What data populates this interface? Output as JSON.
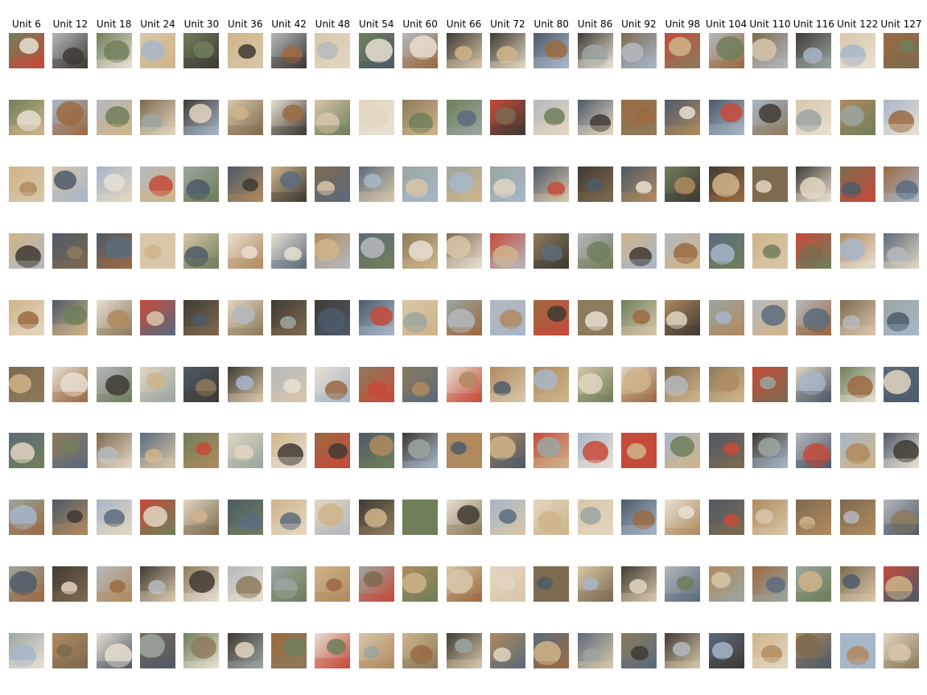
{
  "figure": {
    "columns": [
      "Unit 6",
      "Unit 12",
      "Unit 18",
      "Unit 24",
      "Unit 30",
      "Unit 36",
      "Unit 42",
      "Unit 48",
      "Unit 54",
      "Unit 60",
      "Unit 66",
      "Unit 72",
      "Unit 80",
      "Unit 86",
      "Unit 92",
      "Unit 98",
      "Unit 104",
      "Unit 110",
      "Unit 116",
      "Unit 122",
      "Unit 127"
    ],
    "rows": [
      [
        "dog",
        "dog",
        "dog",
        "cat",
        "dog",
        "ship",
        "dog",
        "dog",
        "dog",
        "dog",
        "cat",
        "bird",
        "cat",
        "dog",
        "bird",
        "cat",
        "deer",
        "automobile",
        "airplane",
        "dog",
        "automobile"
      ],
      [
        "dog",
        "horse",
        "dog",
        "dog",
        "deer",
        "airplane",
        "dog",
        "dog",
        "bird",
        "dog",
        "dog",
        "horse",
        "cat",
        "dog",
        "truck",
        "bird",
        "automobile",
        "horse",
        "cat",
        "dog",
        "truck"
      ],
      [
        "automobile",
        "dog",
        "bird",
        "cat",
        "cat",
        "cat",
        "dog",
        "dog",
        "cat",
        "dog",
        "cat",
        "cat",
        "dog",
        "cat",
        "automobile",
        "dog",
        "horse",
        "cat",
        "automobile",
        "dog",
        "truck"
      ],
      [
        "horse",
        "cat",
        "dog",
        "cat",
        "dog",
        "dog",
        "dog",
        "dog",
        "dog",
        "dog",
        "dog",
        "cat",
        "automobile",
        "dog",
        "truck",
        "dog",
        "deer",
        "cat",
        "airplane",
        "dog",
        "deer"
      ],
      [
        "horse",
        "dog",
        "bird",
        "dog",
        "airplane",
        "bird",
        "dog",
        "dog",
        "ship",
        "dog",
        "cat",
        "automobile",
        "cat",
        "cat",
        "cat",
        "ship",
        "dog",
        "dog",
        "ship",
        "dog",
        "truck"
      ],
      [
        "truck",
        "deer",
        "truck",
        "dog",
        "bird",
        "ship",
        "dog",
        "dog",
        "dog",
        "dog",
        "dog",
        "cat",
        "automobile",
        "dog",
        "truck",
        "cat",
        "dog",
        "automobile",
        "automobile",
        "dog",
        "deer"
      ],
      [
        "bird",
        "dog",
        "dog",
        "cat",
        "dog",
        "cat",
        "dog",
        "dog",
        "dog",
        "dog",
        "cat",
        "cat",
        "truck",
        "cat",
        "truck",
        "frog",
        "bird",
        "cat",
        "truck",
        "dog",
        "truck"
      ],
      [
        "truck",
        "dog",
        "cat",
        "cat",
        "dog",
        "dog",
        "dog",
        "dog",
        "automobile",
        "dog",
        "bird",
        "horse",
        "dog",
        "cat",
        "horse",
        "automobile",
        "frog",
        "automobile",
        "cat",
        "dog",
        "deer"
      ],
      [
        "dog",
        "horse",
        "truck",
        "dog",
        "airplane",
        "cat",
        "dog",
        "frog",
        "cat",
        "dog",
        "frog",
        "ship",
        "dog",
        "cat",
        "airplane",
        "frog",
        "frog",
        "airplane",
        "horse",
        "dog",
        "automobile"
      ],
      [
        "dog",
        "dog",
        "cat",
        "cat",
        "airplane",
        "cat",
        "dog",
        "dog",
        "bird",
        "cat",
        "deer",
        "horse",
        "dog",
        "cat",
        "dog",
        "dog",
        "bird",
        "cat",
        "automobile",
        "cat",
        "truck"
      ]
    ]
  },
  "colors": {
    "background": "#ffffff",
    "palette": [
      "#7d6a4f",
      "#b08a5e",
      "#d8c7a9",
      "#5b6b7c",
      "#9aa6a0",
      "#c64a3a",
      "#e2d6c1",
      "#3f3a33",
      "#a7b6c9",
      "#8c7b5c",
      "#cfb48a",
      "#6f7f5a",
      "#b5b8bd",
      "#e8e0d2",
      "#4d5a68",
      "#9b6a42"
    ]
  }
}
